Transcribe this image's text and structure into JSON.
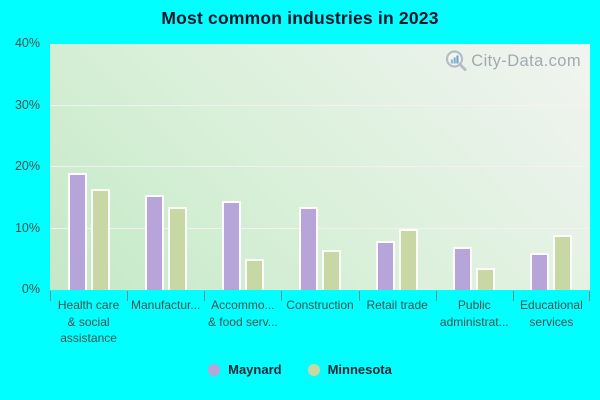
{
  "window": {
    "background": "#00ffff"
  },
  "chart_data": {
    "type": "bar",
    "title": "Most common industries in 2023",
    "categories": [
      "Health care & social assistance",
      "Manufactur...",
      "Accommo... & food serv...",
      "Construction",
      "Retail trade",
      "Public administrat...",
      "Educational services"
    ],
    "category_display_lines": [
      [
        "Health care",
        "& social",
        "assistance"
      ],
      [
        "Manufactur..."
      ],
      [
        "Accommo...",
        "& food serv..."
      ],
      [
        "Construction"
      ],
      [
        "Retail trade"
      ],
      [
        "Public",
        "administrat..."
      ],
      [
        "Educational",
        "services"
      ]
    ],
    "series": [
      {
        "name": "Maynard",
        "color": "#b7a4d9",
        "values": [
          19,
          15.5,
          14.5,
          13.5,
          8,
          7,
          6
        ]
      },
      {
        "name": "Minnesota",
        "color": "#c8d8a4",
        "values": [
          16.5,
          13.5,
          5,
          6.5,
          10,
          3.5,
          9
        ]
      }
    ],
    "xlabel": "",
    "ylabel": "",
    "ylim": [
      0,
      40
    ],
    "yticks": [
      {
        "v": 0,
        "label": "0%"
      },
      {
        "v": 10,
        "label": "10%"
      },
      {
        "v": 20,
        "label": "20%"
      },
      {
        "v": 30,
        "label": "30%"
      },
      {
        "v": 40,
        "label": "40%"
      }
    ],
    "gridlines": [
      10,
      20,
      30
    ],
    "grid": true,
    "legend_position": "bottom"
  },
  "watermark": {
    "text": "City-Data.com"
  },
  "colors": {
    "background": "#00ffff",
    "plot_gradient_start": "#c4e9c7",
    "plot_gradient_end": "#f1f4f0",
    "title_text": "#15152a",
    "axis_text": "#41504f",
    "bar_border": "#ffffff",
    "watermark_text": "#a2a9b1"
  }
}
